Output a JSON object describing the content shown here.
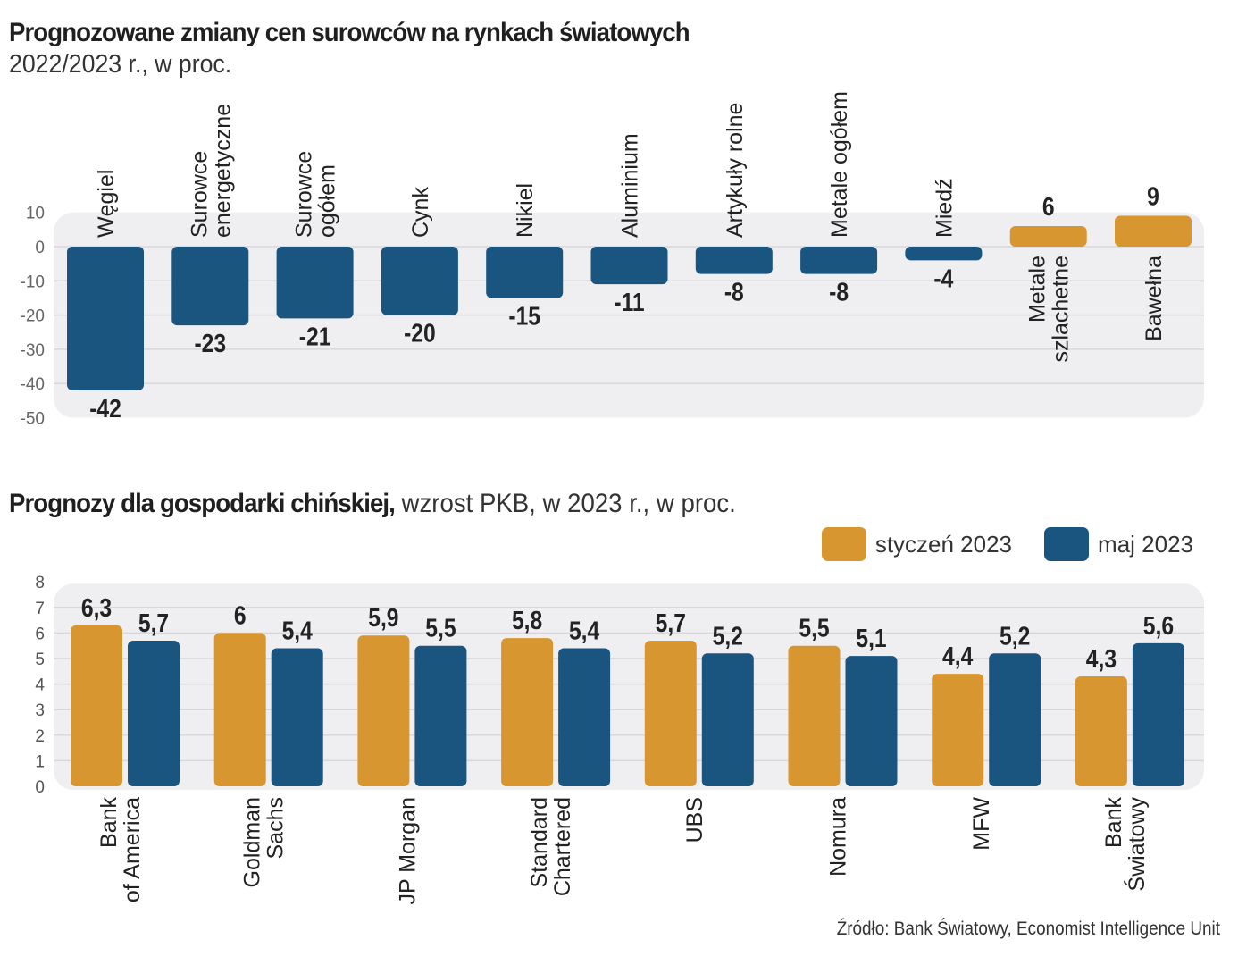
{
  "colors": {
    "negative": "#1a5580",
    "positive": "#d7962f",
    "jan": "#d7962f",
    "may": "#1a5580",
    "panel": "#efeff1",
    "grid": "#d8d8da"
  },
  "chart_data": [
    {
      "type": "bar",
      "title": "Prognozowane zmiany cen  surowców na rynkach światowych",
      "subtitle": "2022/2023 r., w proc.",
      "xlabel": "",
      "ylabel": "",
      "ylim": [
        -50,
        10
      ],
      "yticks": [
        10,
        0,
        -10,
        -20,
        -30,
        -40,
        -50
      ],
      "grid": true,
      "categories": [
        [
          "Węgiel"
        ],
        [
          "Surowce",
          "energetyczne"
        ],
        [
          "Surowce",
          "ogółem"
        ],
        [
          "Cynk"
        ],
        [
          "Nikiel"
        ],
        [
          "Aluminium"
        ],
        [
          "Artykuły rolne"
        ],
        [
          "Metale ogółem"
        ],
        [
          "Miedź"
        ],
        [
          "Metale",
          "szlachetne"
        ],
        [
          "Bawełna"
        ]
      ],
      "values": [
        -42,
        -23,
        -21,
        -20,
        -15,
        -11,
        -8,
        -8,
        -4,
        6,
        9
      ],
      "value_labels": [
        "-42",
        "-23",
        "-21",
        "-20",
        "-15",
        "-11",
        "-8",
        "-8",
        "-4",
        "6",
        "9"
      ]
    },
    {
      "type": "bar",
      "title_bold": "Prognozy dla gospodarki chińskiej,",
      "title_rest": " wzrost PKB, w 2023 r., w proc.",
      "xlabel": "",
      "ylabel": "",
      "ylim": [
        0,
        8
      ],
      "yticks": [
        8,
        7,
        6,
        5,
        4,
        3,
        2,
        1,
        0
      ],
      "grid": true,
      "legend_position": "top-right",
      "categories": [
        [
          "Bank",
          "of America"
        ],
        [
          "Goldman",
          "Sachs"
        ],
        [
          "JP Morgan"
        ],
        [
          "Standard",
          "Chartered"
        ],
        [
          "UBS"
        ],
        [
          "Nomura"
        ],
        [
          "MFW"
        ],
        [
          "Bank",
          "Światowy"
        ]
      ],
      "series": [
        {
          "name": "styczeń 2023",
          "values": [
            6.3,
            6.0,
            5.9,
            5.8,
            5.7,
            5.5,
            4.4,
            4.3
          ],
          "labels": [
            "6,3",
            "6",
            "5,9",
            "5,8",
            "5,7",
            "5,5",
            "4,4",
            "4,3"
          ]
        },
        {
          "name": "maj 2023",
          "values": [
            5.7,
            5.4,
            5.5,
            5.4,
            5.2,
            5.1,
            5.2,
            5.6
          ],
          "labels": [
            "5,7",
            "5,4",
            "5,5",
            "5,4",
            "5,2",
            "5,1",
            "5,2",
            "5,6"
          ]
        }
      ]
    }
  ],
  "source": "Źródło: Bank Światowy, Economist Intelligence Unit"
}
